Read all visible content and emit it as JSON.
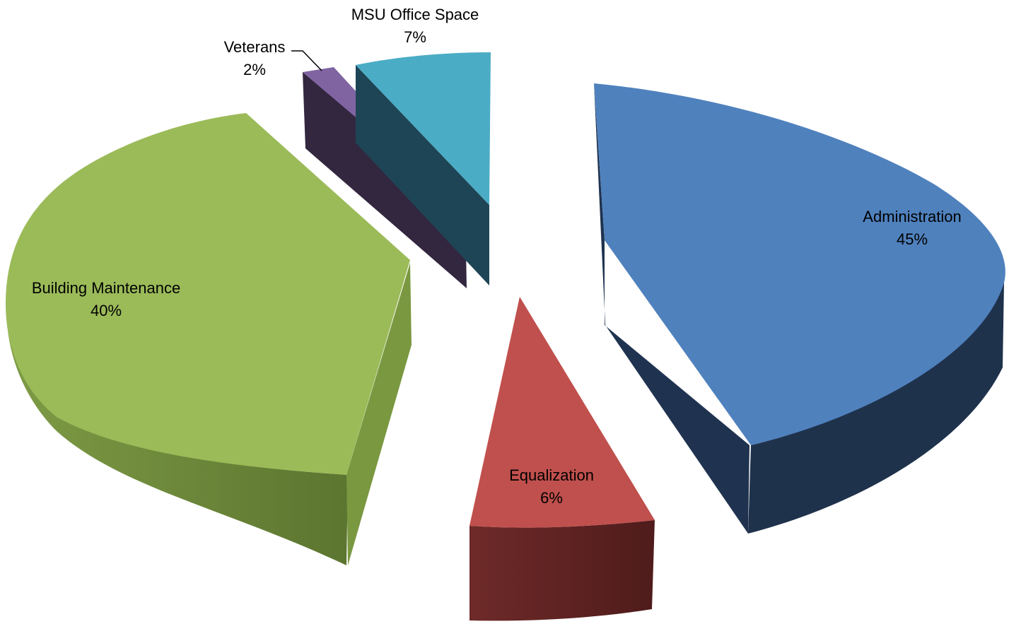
{
  "chart_data": {
    "type": "pie",
    "title": "",
    "style": "3d-exploded",
    "legend": "none",
    "slices": [
      {
        "label": "Administration",
        "value": 45,
        "percent_label": "45%",
        "color": "#4F81BD",
        "side_color": "#1F324C"
      },
      {
        "label": "Equalization",
        "value": 6,
        "percent_label": "6%",
        "color": "#C0504D",
        "side_color": "#5E2120"
      },
      {
        "label": "Building Maintenance",
        "value": 40,
        "percent_label": "40%",
        "color": "#9BBB59",
        "side_color": "#6E8A3C"
      },
      {
        "label": "Veterans",
        "value": 2,
        "percent_label": "2%",
        "color": "#8064A2",
        "side_color": "#33263F"
      },
      {
        "label": "MSU Office Space",
        "value": 7,
        "percent_label": "7%",
        "color": "#4BACC6",
        "side_color": "#1E4555"
      }
    ]
  }
}
